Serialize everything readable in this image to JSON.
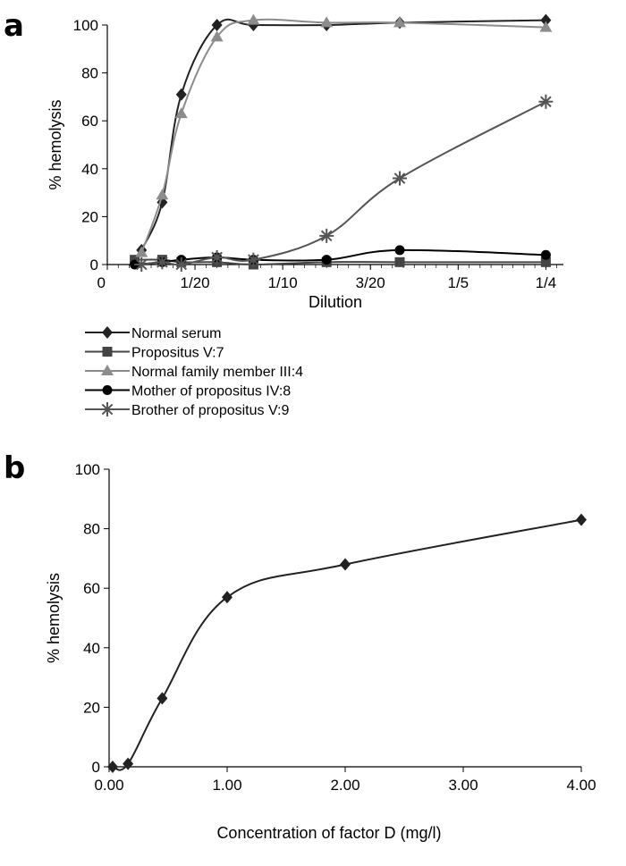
{
  "panel_labels": [
    "a",
    "b"
  ],
  "chart_data": [
    {
      "panel": "a",
      "type": "line",
      "title": "",
      "xlabel": "Dilution",
      "ylabel": "% hemolysis",
      "xlim": [
        0,
        0.26
      ],
      "ylim": [
        0,
        100
      ],
      "x_ticks": [
        {
          "value": 0,
          "label": "0"
        },
        {
          "value": 0.05,
          "label": "1/20"
        },
        {
          "value": 0.1,
          "label": "1/10"
        },
        {
          "value": 0.15,
          "label": "3/20"
        },
        {
          "value": 0.2,
          "label": "1/5"
        },
        {
          "value": 0.25,
          "label": "1/4"
        }
      ],
      "y_ticks": [
        {
          "value": 0,
          "label": "0"
        },
        {
          "value": 20,
          "label": "20"
        },
        {
          "value": 40,
          "label": "40"
        },
        {
          "value": 60,
          "label": "60"
        },
        {
          "value": 80,
          "label": "80"
        },
        {
          "value": 100,
          "label": "100"
        }
      ],
      "legend_position": "bottom",
      "series": [
        {
          "name": "Normal serum",
          "marker": "diamond",
          "color": "#222222",
          "x": [
            0.0195,
            0.0313,
            0.0422,
            0.0625,
            0.0833,
            0.125,
            0.1667,
            0.25
          ],
          "y": [
            6,
            26,
            71,
            100,
            100,
            100,
            101,
            102
          ]
        },
        {
          "name": "Propositus V:7",
          "marker": "square",
          "color": "#444444",
          "x": [
            0.0156,
            0.0313,
            0.0422,
            0.0625,
            0.0833,
            0.125,
            0.1667,
            0.25
          ],
          "y": [
            2,
            2,
            1,
            1,
            0,
            1,
            1,
            1
          ]
        },
        {
          "name": "Normal family member III:4",
          "marker": "triangle",
          "color": "#8c8c8c",
          "x": [
            0.0195,
            0.0313,
            0.0422,
            0.0625,
            0.0833,
            0.125,
            0.1667,
            0.25
          ],
          "y": [
            5,
            29,
            63,
            95,
            102,
            101,
            101,
            99
          ]
        },
        {
          "name": "Mother of propositus IV:8",
          "marker": "circle",
          "color": "#000000",
          "x": [
            0.0156,
            0.0313,
            0.0422,
            0.0625,
            0.0833,
            0.125,
            0.1667,
            0.25
          ],
          "y": [
            0,
            1,
            2,
            3,
            2,
            2,
            6,
            4
          ]
        },
        {
          "name": "Brother of propositus V:9",
          "marker": "star",
          "color": "#555555",
          "x": [
            0.0195,
            0.0313,
            0.0422,
            0.0625,
            0.0833,
            0.125,
            0.1667,
            0.25
          ],
          "y": [
            0,
            1,
            0,
            3,
            2,
            12,
            36,
            68
          ]
        }
      ]
    },
    {
      "panel": "b",
      "type": "line",
      "title": "",
      "xlabel": "Concentration of factor D (mg/l)",
      "ylabel": "% hemolysis",
      "xlim": [
        0,
        4
      ],
      "ylim": [
        0,
        100
      ],
      "x_ticks": [
        {
          "value": 0,
          "label": "0.00"
        },
        {
          "value": 1,
          "label": "1.00"
        },
        {
          "value": 2,
          "label": "2.00"
        },
        {
          "value": 3,
          "label": "3.00"
        },
        {
          "value": 4,
          "label": "4.00"
        }
      ],
      "y_ticks": [
        {
          "value": 0,
          "label": "0"
        },
        {
          "value": 20,
          "label": "20"
        },
        {
          "value": 40,
          "label": "40"
        },
        {
          "value": 60,
          "label": "60"
        },
        {
          "value": 80,
          "label": "80"
        },
        {
          "value": 100,
          "label": "100"
        }
      ],
      "series": [
        {
          "name": "",
          "marker": "diamond",
          "color": "#222222",
          "x": [
            0.03,
            0.16,
            0.45,
            1.0,
            2.0,
            4.0
          ],
          "y": [
            0,
            1,
            23,
            57,
            68,
            83
          ]
        }
      ]
    }
  ]
}
